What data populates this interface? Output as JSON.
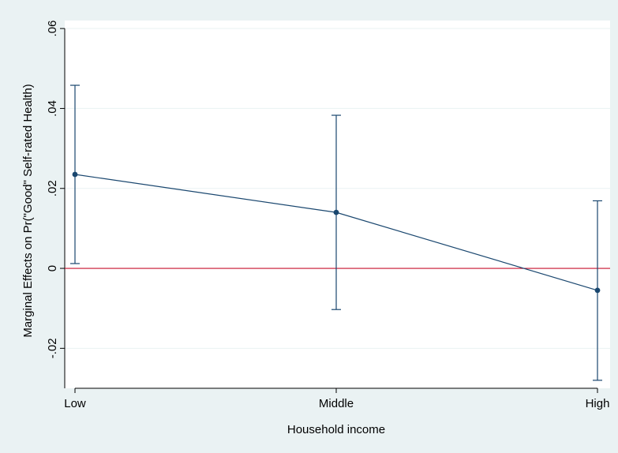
{
  "chart_data": {
    "type": "line",
    "title": "",
    "xlabel": "Household income",
    "ylabel": "Marginal Effects on Pr(\"Good\" Self-rated Health)",
    "categories": [
      "Low",
      "Middle",
      "High"
    ],
    "series": [
      {
        "values": [
          0.0235,
          0.014,
          -0.0055
        ],
        "ci_lower": [
          0.0012,
          -0.0103,
          -0.028
        ],
        "ci_upper": [
          0.0458,
          0.0383,
          0.0169
        ]
      }
    ],
    "yticks": [
      -0.02,
      0,
      0.02,
      0.04,
      0.06
    ],
    "ytick_labels": [
      "-.02",
      "0",
      ".02",
      ".04",
      ".06"
    ],
    "ylim": [
      -0.03,
      0.062
    ],
    "reference_line": {
      "y": 0,
      "color": "#c8102e"
    },
    "colors": {
      "series": "#1a476f",
      "plot_background": "#ffffff",
      "outer_background": "#eaf2f3",
      "gridline": "#eaf2f3"
    },
    "grid": true,
    "legend": "none"
  }
}
